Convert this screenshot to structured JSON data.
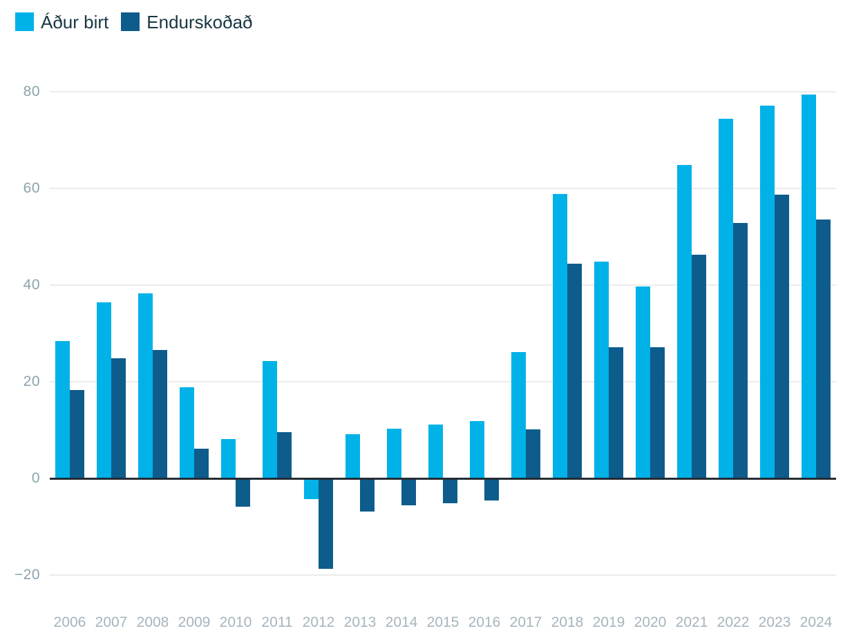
{
  "legend": {
    "items": [
      {
        "label": "Áður birt",
        "color": "#00b2e8"
      },
      {
        "label": "Endurskoðað",
        "color": "#0e5c8c"
      }
    ]
  },
  "colors": {
    "series_light": "#00b2e8",
    "series_dark": "#0e5c8c",
    "gridline": "#ebebeb",
    "zero_axis": "#232c34",
    "y_tick_text": "#8ba2ae",
    "x_tick_text": "#a6b4bd",
    "legend_text": "#173642",
    "background": "#ffffff"
  },
  "chart_data": {
    "type": "bar",
    "title": "",
    "xlabel": "",
    "ylabel": "",
    "grid": true,
    "legend_position": "top-left",
    "categories": [
      "2006",
      "2007",
      "2008",
      "2009",
      "2010",
      "2011",
      "2012",
      "2013",
      "2014",
      "2015",
      "2016",
      "2017",
      "2018",
      "2019",
      "2020",
      "2021",
      "2022",
      "2023",
      "2024"
    ],
    "series": [
      {
        "name": "Áður birt",
        "color": "#00b2e8",
        "values": [
          28.5,
          36.5,
          38.3,
          18.9,
          8.1,
          24.3,
          -4.0,
          9.2,
          10.3,
          11.2,
          11.8,
          26.2,
          58.8,
          44.9,
          39.7,
          64.8,
          74.4,
          77.1,
          79.4
        ]
      },
      {
        "name": "Endurskoðað",
        "color": "#0e5c8c",
        "values": [
          18.3,
          24.8,
          26.6,
          6.1,
          -5.6,
          9.6,
          -18.5,
          -6.6,
          -5.4,
          -4.9,
          -4.3,
          10.2,
          44.4,
          27.2,
          27.1,
          46.3,
          52.9,
          58.7,
          53.6
        ]
      }
    ],
    "yticks": [
      80,
      60,
      40,
      20,
      0,
      -20
    ],
    "ylim": [
      -25,
      85
    ]
  }
}
